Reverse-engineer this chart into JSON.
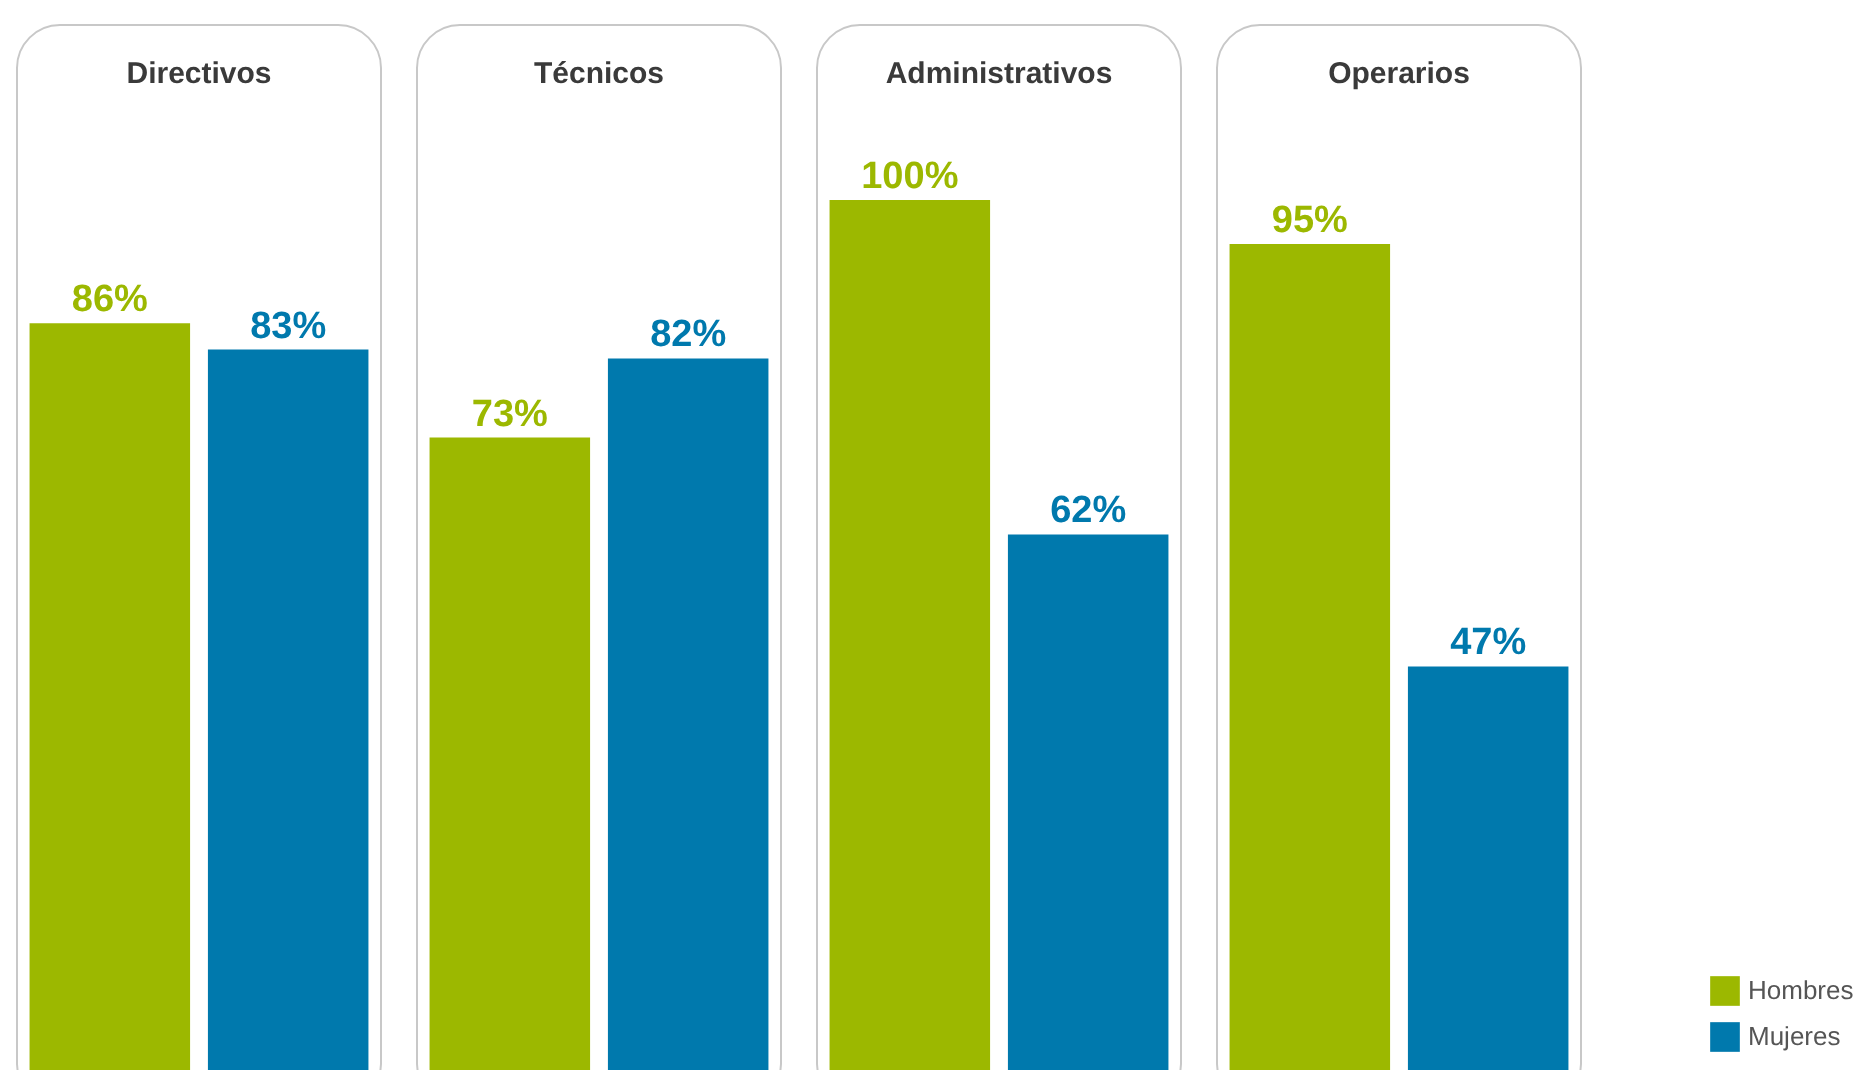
{
  "chart_data": {
    "type": "bar",
    "categories": [
      "Directivos",
      "Técnicos",
      "Administrativos",
      "Operarios"
    ],
    "series": [
      {
        "name": "Hombres",
        "color": "#9cb800",
        "values": [
          86,
          73,
          100,
          95
        ],
        "value_labels": [
          "86%",
          "73%",
          "100%",
          "95%"
        ]
      },
      {
        "name": "Mujeres",
        "color": "#0079ad",
        "values": [
          83,
          82,
          62,
          47
        ],
        "value_labels": [
          "83%",
          "82%",
          "62%",
          "47%"
        ]
      }
    ],
    "legend": "bottom right"
  }
}
